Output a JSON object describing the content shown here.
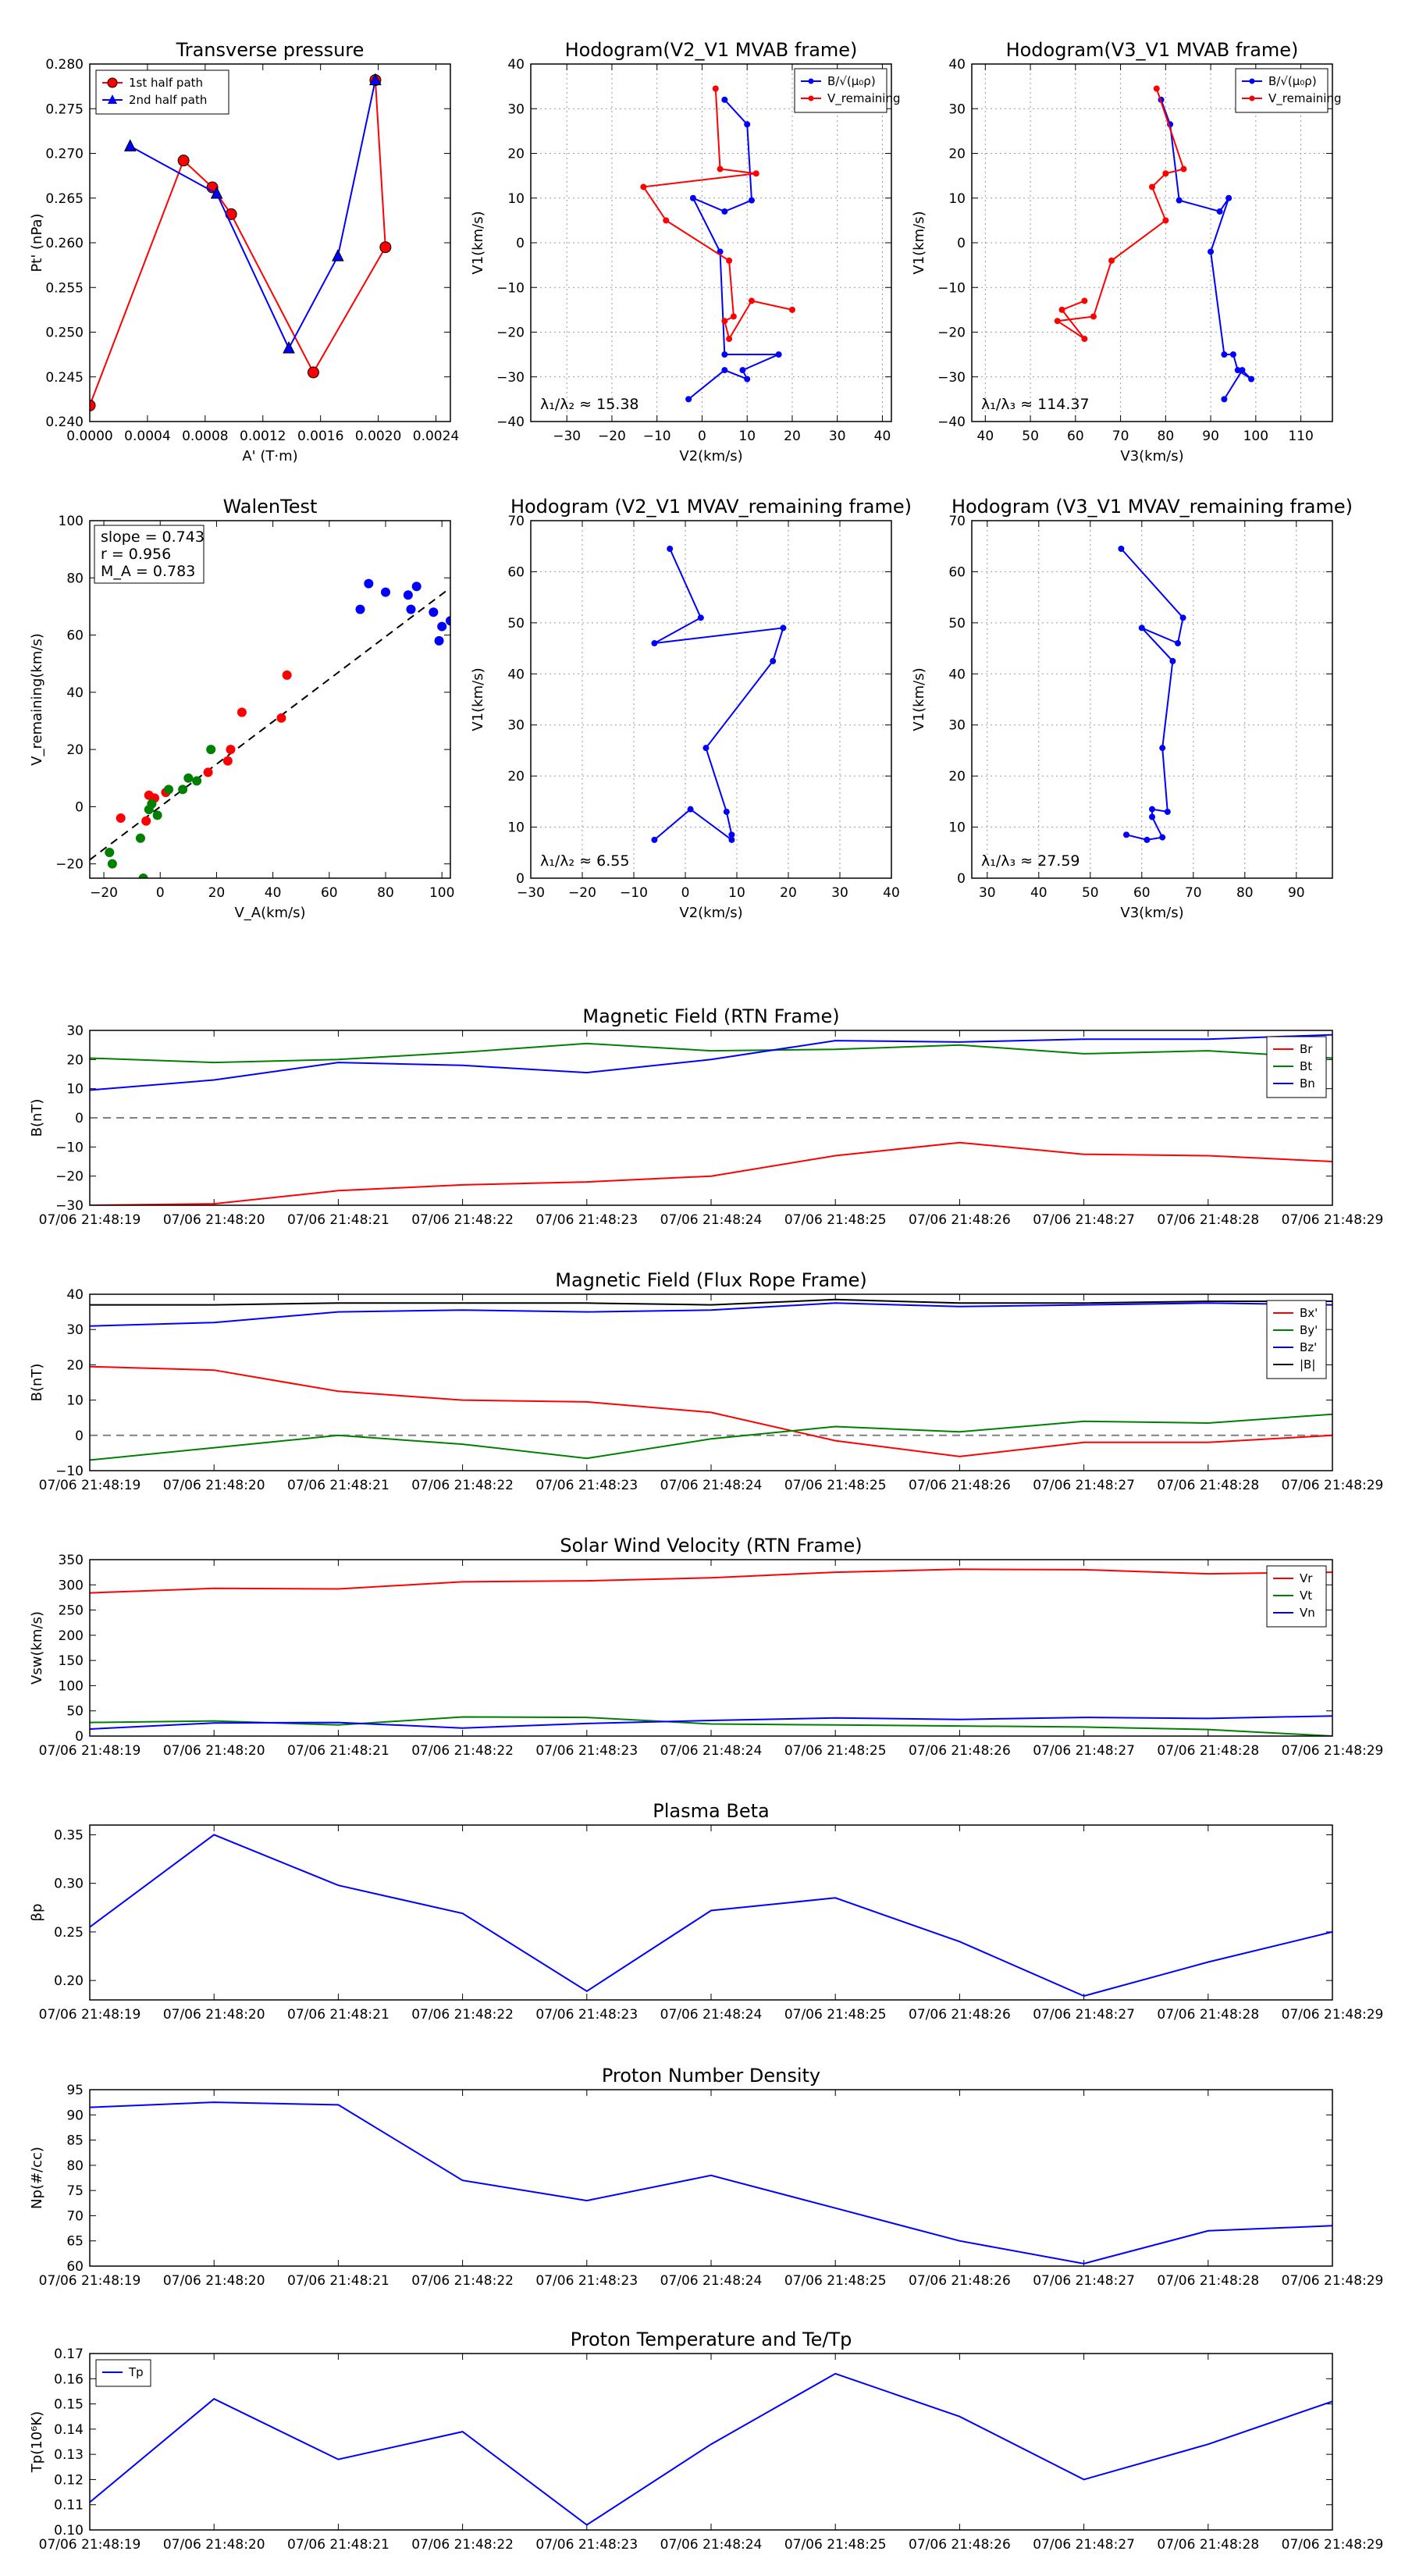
{
  "chart_data": [
    {
      "id": "tp",
      "type": "scatter",
      "title": "Transverse pressure",
      "xlabel": "A' (T·m)",
      "ylabel": "Pt' (nPa)",
      "xlim": [
        0,
        0.0025
      ],
      "ylim": [
        0.24,
        0.28
      ],
      "xticks": [
        0,
        0.0004,
        0.0008,
        0.0012,
        0.0016,
        0.002,
        0.0024
      ],
      "xtick_labels": [
        "0.0000",
        "0.0004",
        "0.0008",
        "0.0012",
        "0.0016",
        "0.0020",
        "0.0024"
      ],
      "yticks": [
        0.24,
        0.245,
        0.25,
        0.255,
        0.26,
        0.265,
        0.27,
        0.275,
        0.28
      ],
      "ytick_labels": [
        "0.240",
        "0.245",
        "0.250",
        "0.255",
        "0.260",
        "0.265",
        "0.270",
        "0.275",
        "0.280"
      ],
      "grid": false,
      "legend_loc": "top-left",
      "series": [
        {
          "name": "1st half path",
          "color": "#ff0000",
          "marker": "circle",
          "x": [
            0,
            0.00065,
            0.00085,
            0.00098,
            0.00155,
            0.00205,
            0.00198
          ],
          "y": [
            0.2418,
            0.2692,
            0.2662,
            0.2632,
            0.2455,
            0.2595,
            0.2782
          ]
        },
        {
          "name": "2nd half path",
          "color": "#0000ff",
          "marker": "triangle",
          "x": [
            0.00198,
            0.00172,
            0.00138,
            0.00088,
            0.00028
          ],
          "y": [
            0.2782,
            0.2585,
            0.2482,
            0.2655,
            0.2708
          ]
        }
      ]
    },
    {
      "id": "h21",
      "type": "line",
      "title": "Hodogram(V2_V1 MVAB frame)",
      "xlabel": "V2(km/s)",
      "ylabel": "V1(km/s)",
      "xlim": [
        -38,
        42
      ],
      "ylim": [
        -40,
        40
      ],
      "xticks": [
        -30,
        -20,
        -10,
        0,
        10,
        20,
        30,
        40
      ],
      "xtick_labels": [
        "−30",
        "−20",
        "−10",
        "0",
        "10",
        "20",
        "30",
        "40"
      ],
      "yticks": [
        -40,
        -30,
        -20,
        -10,
        0,
        10,
        20,
        30,
        40
      ],
      "ytick_labels": [
        "−40",
        "−30",
        "−20",
        "−10",
        "0",
        "10",
        "20",
        "30",
        "40"
      ],
      "grid": true,
      "legend_loc": "top-right",
      "annotation": "λ₁/λ₂ ≈ 15.38",
      "series": [
        {
          "name": "B/√(μ₀ρ)",
          "color": "#0000ff",
          "x": [
            5,
            10,
            11,
            5,
            -2,
            4,
            5,
            17,
            9,
            10,
            5,
            -3
          ],
          "y": [
            32,
            26.5,
            9.5,
            7,
            10,
            -2,
            -25,
            -25,
            -28.5,
            -30.5,
            -28.5,
            -35
          ]
        },
        {
          "name": "V_remaining",
          "color": "#ff0000",
          "x": [
            3,
            4,
            12,
            -13,
            -8,
            6,
            7,
            5,
            6,
            11,
            20
          ],
          "y": [
            34.5,
            16.5,
            15.5,
            12.5,
            5,
            -4,
            -16.5,
            -17.5,
            -21.5,
            -13,
            -15
          ]
        }
      ]
    },
    {
      "id": "h31",
      "type": "line",
      "title": "Hodogram(V3_V1 MVAB frame)",
      "xlabel": "V3(km/s)",
      "ylabel": "V1(km/s)",
      "xlim": [
        37,
        117
      ],
      "ylim": [
        -40,
        40
      ],
      "xticks": [
        40,
        50,
        60,
        70,
        80,
        90,
        100,
        110
      ],
      "xtick_labels": [
        "40",
        "50",
        "60",
        "70",
        "80",
        "90",
        "100",
        "110"
      ],
      "yticks": [
        -40,
        -30,
        -20,
        -10,
        0,
        10,
        20,
        30,
        40
      ],
      "ytick_labels": [
        "−40",
        "−30",
        "−20",
        "−10",
        "0",
        "10",
        "20",
        "30",
        "40"
      ],
      "grid": true,
      "legend_loc": "top-right",
      "annotation": "λ₁/λ₃ ≈ 114.37",
      "series": [
        {
          "name": "B/√(μ₀ρ)",
          "color": "#0000ff",
          "x": [
            79,
            81,
            83,
            92,
            94,
            90,
            93,
            95,
            96,
            99,
            97,
            93
          ],
          "y": [
            32,
            26.5,
            9.5,
            7,
            10,
            -2,
            -25,
            -25,
            -28.5,
            -30.5,
            -28.5,
            -35
          ]
        },
        {
          "name": "V_remaining",
          "color": "#ff0000",
          "x": [
            78,
            84,
            80,
            77,
            80,
            68,
            64,
            56,
            62,
            57,
            62
          ],
          "y": [
            34.5,
            16.5,
            15.5,
            12.5,
            5,
            -4,
            -16.5,
            -17.5,
            -21.5,
            -15,
            -13
          ]
        }
      ]
    },
    {
      "id": "walen",
      "type": "scatter",
      "title": "WalenTest",
      "xlabel": "V_A(km/s)",
      "ylabel": "V_remaining(km/s)",
      "xlim": [
        -25,
        103
      ],
      "ylim": [
        -25,
        100
      ],
      "xticks": [
        -20,
        0,
        20,
        40,
        60,
        80,
        100
      ],
      "xtick_labels": [
        "−20",
        "0",
        "20",
        "40",
        "60",
        "80",
        "100"
      ],
      "yticks": [
        -20,
        0,
        20,
        40,
        60,
        80,
        100
      ],
      "ytick_labels": [
        "−20",
        "0",
        "20",
        "40",
        "60",
        "80",
        "100"
      ],
      "grid": false,
      "stats": [
        "slope = 0.743",
        "r = 0.956",
        "M_A = 0.783"
      ],
      "fit": {
        "slope": 0.743,
        "intercept": 0,
        "color": "#000000"
      },
      "series": [
        {
          "name": "red",
          "color": "#ff0000",
          "x": [
            -14,
            -5,
            -4,
            -2,
            2,
            17,
            24,
            25,
            29,
            43,
            45
          ],
          "y": [
            -4,
            -5,
            4,
            3,
            5,
            12,
            16,
            20,
            33,
            31,
            46
          ]
        },
        {
          "name": "green",
          "color": "#008000",
          "x": [
            -18,
            -17,
            -7,
            -6,
            -4,
            -3,
            -1,
            3,
            8,
            10,
            13,
            18
          ],
          "y": [
            -16,
            -20,
            -11,
            -25,
            -1,
            1,
            -3,
            6,
            6,
            10,
            9,
            20
          ]
        },
        {
          "name": "blue",
          "color": "#0000ff",
          "x": [
            71,
            74,
            80,
            88,
            89,
            91,
            97,
            99,
            100,
            103
          ],
          "y": [
            69,
            78,
            75,
            74,
            69,
            77,
            68,
            58,
            63,
            65
          ]
        }
      ]
    },
    {
      "id": "h21r",
      "type": "line",
      "title": "Hodogram (V2_V1 MVAV_remaining frame)",
      "xlabel": "V2(km/s)",
      "ylabel": "V1(km/s)",
      "xlim": [
        -30,
        40
      ],
      "ylim": [
        0,
        70
      ],
      "xticks": [
        -30,
        -20,
        -10,
        0,
        10,
        20,
        30,
        40
      ],
      "xtick_labels": [
        "−30",
        "−20",
        "−10",
        "0",
        "10",
        "20",
        "30",
        "40"
      ],
      "yticks": [
        0,
        10,
        20,
        30,
        40,
        50,
        60,
        70
      ],
      "ytick_labels": [
        "0",
        "10",
        "20",
        "30",
        "40",
        "50",
        "60",
        "70"
      ],
      "grid": true,
      "annotation": "λ₁/λ₂ ≈ 6.55",
      "series": [
        {
          "name": "V",
          "color": "#0000ff",
          "x": [
            -3,
            3,
            -6,
            19,
            17,
            4,
            8,
            9,
            9,
            1,
            -6
          ],
          "y": [
            64.5,
            51,
            46,
            49,
            42.5,
            25.5,
            13,
            8.5,
            7.5,
            13.5,
            7.5
          ]
        }
      ]
    },
    {
      "id": "h31r",
      "type": "line",
      "title": "Hodogram (V3_V1 MVAV_remaining frame)",
      "xlabel": "V3(km/s)",
      "ylabel": "V1(km/s)",
      "xlim": [
        27,
        97
      ],
      "ylim": [
        0,
        70
      ],
      "xticks": [
        30,
        40,
        50,
        60,
        70,
        80,
        90
      ],
      "xtick_labels": [
        "30",
        "40",
        "50",
        "60",
        "70",
        "80",
        "90"
      ],
      "yticks": [
        0,
        10,
        20,
        30,
        40,
        50,
        60,
        70
      ],
      "ytick_labels": [
        "0",
        "10",
        "20",
        "30",
        "40",
        "50",
        "60",
        "70"
      ],
      "grid": true,
      "annotation": "λ₁/λ₃ ≈ 27.59",
      "series": [
        {
          "name": "V",
          "color": "#0000ff",
          "x": [
            56,
            68,
            67,
            60,
            66,
            64,
            65,
            62,
            62,
            64,
            61,
            57
          ],
          "y": [
            64.5,
            51,
            46,
            49,
            42.5,
            25.5,
            13,
            13.5,
            12,
            8,
            7.5,
            8.5
          ]
        }
      ]
    },
    {
      "id": "mag_rtn",
      "type": "line",
      "title": "Magnetic Field (RTN Frame)",
      "ylabel": "B(nT)",
      "categories": [
        "07/06 21:48:19",
        "07/06 21:48:20",
        "07/06 21:48:21",
        "07/06 21:48:22",
        "07/06 21:48:23",
        "07/06 21:48:24",
        "07/06 21:48:25",
        "07/06 21:48:26",
        "07/06 21:48:27",
        "07/06 21:48:28",
        "07/06 21:48:29"
      ],
      "ylim": [
        -30,
        30
      ],
      "yticks": [
        -30,
        -20,
        -10,
        0,
        10,
        20,
        30
      ],
      "ytick_labels": [
        "−30",
        "−20",
        "−10",
        "0",
        "10",
        "20",
        "30"
      ],
      "zero_line": true,
      "legend_loc": "right",
      "series": [
        {
          "name": "Br",
          "color": "#ff0000",
          "values": [
            -30,
            -29.5,
            -25,
            -23,
            -22,
            -20,
            -13,
            -8.5,
            -12.5,
            -13,
            -15
          ]
        },
        {
          "name": "Bt",
          "color": "#008000",
          "values": [
            20.5,
            19,
            20,
            22.5,
            25.5,
            23,
            23.5,
            25,
            22,
            23,
            20.5
          ]
        },
        {
          "name": "Bn",
          "color": "#0000ff",
          "values": [
            9.5,
            13,
            19,
            18,
            15.5,
            20,
            26.5,
            26,
            27,
            27,
            28.5
          ]
        }
      ]
    },
    {
      "id": "mag_fr",
      "type": "line",
      "title": "Magnetic Field (Flux Rope Frame)",
      "ylabel": "B(nT)",
      "categories": [
        "07/06 21:48:19",
        "07/06 21:48:20",
        "07/06 21:48:21",
        "07/06 21:48:22",
        "07/06 21:48:23",
        "07/06 21:48:24",
        "07/06 21:48:25",
        "07/06 21:48:26",
        "07/06 21:48:27",
        "07/06 21:48:28",
        "07/06 21:48:29"
      ],
      "ylim": [
        -10,
        40
      ],
      "yticks": [
        -10,
        0,
        10,
        20,
        30,
        40
      ],
      "ytick_labels": [
        "−10",
        "0",
        "10",
        "20",
        "30",
        "40"
      ],
      "zero_line": true,
      "legend_loc": "right",
      "series": [
        {
          "name": "Bx'",
          "color": "#ff0000",
          "values": [
            19.5,
            18.5,
            12.5,
            10,
            9.5,
            6.5,
            -1.5,
            -6,
            -2,
            -2,
            0
          ]
        },
        {
          "name": "By'",
          "color": "#008000",
          "values": [
            -7,
            -3.5,
            0,
            -2.5,
            -6.5,
            -1,
            2.5,
            1,
            4,
            3.5,
            6
          ]
        },
        {
          "name": "Bz'",
          "color": "#0000ff",
          "values": [
            31,
            32,
            35,
            35.5,
            35,
            35.5,
            37.5,
            36.5,
            37,
            37.5,
            37
          ]
        },
        {
          "name": "|B|",
          "color": "#000000",
          "values": [
            37,
            37,
            37.5,
            37.5,
            37.5,
            37,
            38.5,
            37.5,
            37.5,
            38,
            38
          ]
        }
      ]
    },
    {
      "id": "vel",
      "type": "line",
      "title": "Solar Wind Velocity (RTN Frame)",
      "ylabel": "Vsw(km/s)",
      "categories": [
        "07/06 21:48:19",
        "07/06 21:48:20",
        "07/06 21:48:21",
        "07/06 21:48:22",
        "07/06 21:48:23",
        "07/06 21:48:24",
        "07/06 21:48:25",
        "07/06 21:48:26",
        "07/06 21:48:27",
        "07/06 21:48:28",
        "07/06 21:48:29"
      ],
      "ylim": [
        0,
        350
      ],
      "yticks": [
        0,
        50,
        100,
        150,
        200,
        250,
        300,
        350
      ],
      "ytick_labels": [
        "0",
        "50",
        "100",
        "150",
        "200",
        "250",
        "300",
        "350"
      ],
      "legend_loc": "right",
      "series": [
        {
          "name": "Vr",
          "color": "#ff0000",
          "values": [
            284,
            293,
            292,
            306,
            308,
            314,
            325,
            331,
            330,
            322,
            325
          ]
        },
        {
          "name": "Vt",
          "color": "#008000",
          "values": [
            27,
            30,
            22,
            38,
            37,
            24,
            22,
            20,
            18,
            13,
            0
          ]
        },
        {
          "name": "Vn",
          "color": "#0000ff",
          "values": [
            14,
            26,
            27,
            16,
            25,
            31,
            36,
            33,
            37,
            35,
            40
          ]
        }
      ]
    },
    {
      "id": "beta",
      "type": "line",
      "title": "Plasma Beta",
      "ylabel": "βp",
      "categories": [
        "07/06 21:48:19",
        "07/06 21:48:20",
        "07/06 21:48:21",
        "07/06 21:48:22",
        "07/06 21:48:23",
        "07/06 21:48:24",
        "07/06 21:48:25",
        "07/06 21:48:26",
        "07/06 21:48:27",
        "07/06 21:48:28",
        "07/06 21:48:29"
      ],
      "ylim": [
        0.18,
        0.36
      ],
      "yticks": [
        0.2,
        0.25,
        0.3,
        0.35
      ],
      "ytick_labels": [
        "0.20",
        "0.25",
        "0.30",
        "0.35"
      ],
      "series": [
        {
          "name": "βp",
          "color": "#0000ff",
          "values": [
            0.255,
            0.35,
            0.298,
            0.269,
            0.189,
            0.272,
            0.285,
            0.24,
            0.184,
            0.219,
            0.25
          ]
        }
      ]
    },
    {
      "id": "np",
      "type": "line",
      "title": "Proton Number Density",
      "ylabel": "Np(#/cc)",
      "categories": [
        "07/06 21:48:19",
        "07/06 21:48:20",
        "07/06 21:48:21",
        "07/06 21:48:22",
        "07/06 21:48:23",
        "07/06 21:48:24",
        "07/06 21:48:25",
        "07/06 21:48:26",
        "07/06 21:48:27",
        "07/06 21:48:28",
        "07/06 21:48:29"
      ],
      "ylim": [
        60,
        95
      ],
      "yticks": [
        60,
        65,
        70,
        75,
        80,
        85,
        90,
        95
      ],
      "ytick_labels": [
        "60",
        "65",
        "70",
        "75",
        "80",
        "85",
        "90",
        "95"
      ],
      "series": [
        {
          "name": "Np",
          "color": "#0000ff",
          "values": [
            91.5,
            92.5,
            92,
            77,
            73,
            78,
            71.5,
            65,
            60.5,
            67,
            68
          ]
        }
      ]
    },
    {
      "id": "tp_temp",
      "type": "line",
      "title": "Proton Temperature and Te/Tp",
      "ylabel": "Tp(10⁶K)",
      "categories": [
        "07/06 21:48:19",
        "07/06 21:48:20",
        "07/06 21:48:21",
        "07/06 21:48:22",
        "07/06 21:48:23",
        "07/06 21:48:24",
        "07/06 21:48:25",
        "07/06 21:48:26",
        "07/06 21:48:27",
        "07/06 21:48:28",
        "07/06 21:48:29"
      ],
      "ylim": [
        0.1,
        0.17
      ],
      "yticks": [
        0.1,
        0.11,
        0.12,
        0.13,
        0.14,
        0.15,
        0.16,
        0.17
      ],
      "ytick_labels": [
        "0.10",
        "0.11",
        "0.12",
        "0.13",
        "0.14",
        "0.15",
        "0.16",
        "0.17"
      ],
      "legend_loc": "top-left",
      "series": [
        {
          "name": "Tp",
          "color": "#0000ff",
          "values": [
            0.111,
            0.152,
            0.128,
            0.139,
            0.102,
            0.134,
            0.162,
            0.145,
            0.12,
            0.134,
            0.151
          ]
        }
      ]
    }
  ]
}
